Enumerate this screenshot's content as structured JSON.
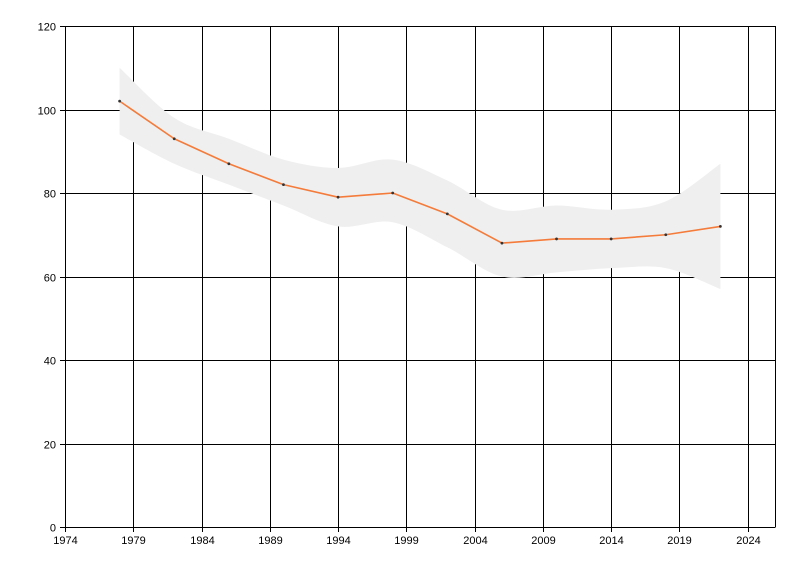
{
  "chart_data": {
    "type": "line",
    "title": "",
    "xlabel": "",
    "ylabel": "",
    "xlim": [
      1974,
      2026
    ],
    "ylim": [
      0,
      120
    ],
    "x_ticks": [
      1974,
      1979,
      1984,
      1989,
      1994,
      1999,
      2004,
      2009,
      2014,
      2019,
      2024
    ],
    "y_ticks": [
      0,
      20,
      40,
      60,
      80,
      100,
      120
    ],
    "x_tick_labels": [
      "1974",
      "1979",
      "1984",
      "1989",
      "1994",
      "1999",
      "2004",
      "2009",
      "2014",
      "2019",
      "2024"
    ],
    "y_tick_labels": [
      "0",
      "20",
      "40",
      "60",
      "80",
      "100",
      "120"
    ],
    "grid": true,
    "legend": "none",
    "series": [
      {
        "x": [
          1978,
          1982,
          1986,
          1990,
          1994,
          1998,
          2002,
          2006,
          2010,
          2014,
          2018,
          2022
        ],
        "values": [
          102,
          93,
          87,
          82,
          79,
          80,
          75,
          68,
          69,
          69,
          70,
          72
        ],
        "lower": [
          94,
          87,
          82,
          77,
          72,
          73,
          67,
          60,
          61,
          62,
          62,
          57
        ],
        "upper": [
          110,
          98,
          93,
          88,
          86,
          88,
          83,
          76,
          77,
          76,
          78,
          87
        ],
        "color": "#f47b3a",
        "marker_color": "#333333"
      }
    ],
    "colors": {
      "band": "#efefef",
      "grid": "#000000",
      "axis": "#000000"
    }
  }
}
